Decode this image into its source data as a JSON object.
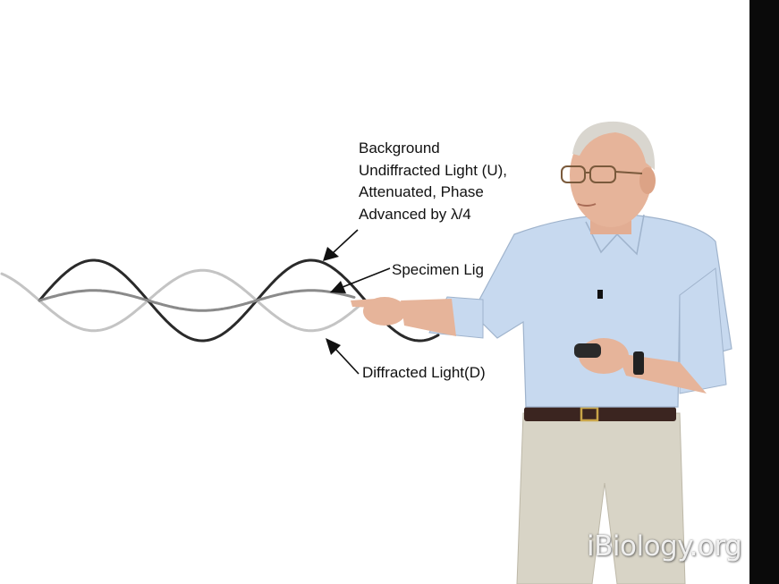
{
  "diagram": {
    "labels": {
      "background_lines": [
        "Background",
        "Undiffracted Light (U),",
        "Attenuated, Phase",
        "Advanced by λ/4"
      ],
      "specimen": "Specimen Lig",
      "diffracted": "Diffracted Light(D)"
    },
    "waves": [
      {
        "name": "undiffracted-wave",
        "color": "#2a2a2a",
        "amplitude": 1.0,
        "phase": 0
      },
      {
        "name": "specimen-wave",
        "color": "#8a8a8a",
        "amplitude": 0.25,
        "phase": 0
      },
      {
        "name": "diffracted-wave",
        "color": "#c4c4c4",
        "amplitude": 0.75,
        "phase": 180
      }
    ]
  },
  "presenter": {
    "shirt_color": "#c7d9ef",
    "pants_color": "#d8d4c6",
    "belt_color": "#3b2520",
    "skin_color": "#e6b49a",
    "hair_color": "#d9d6cf"
  },
  "watermark": {
    "text": "iBiology.org"
  }
}
